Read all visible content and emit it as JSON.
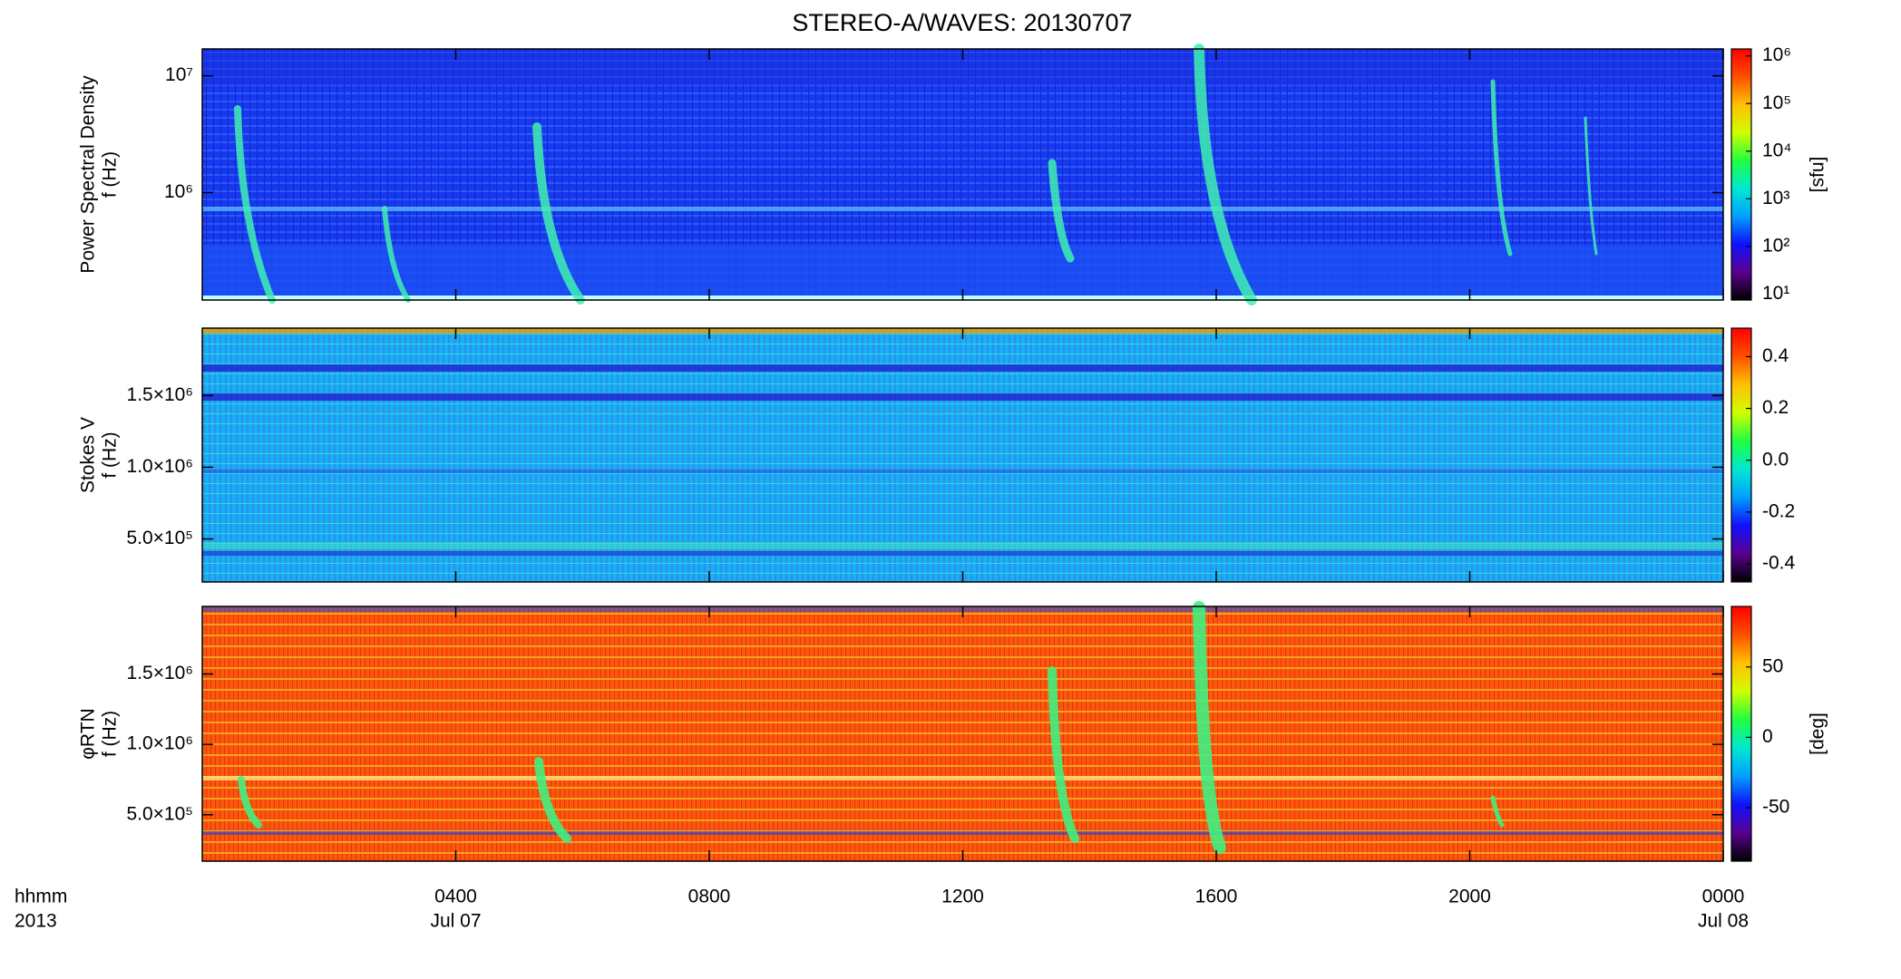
{
  "chart_data": {
    "type": "spectrogram",
    "title": "STEREO-A/WAVES: 20130707",
    "xlabel": "hhmm",
    "xlabel2": "2013",
    "xlim": [
      0,
      24
    ],
    "xticks": [
      {
        "value": 4,
        "label": "0400"
      },
      {
        "value": 8,
        "label": "0800"
      },
      {
        "value": 12,
        "label": "1200"
      },
      {
        "value": 16,
        "label": "1600"
      },
      {
        "value": 20,
        "label": "2000"
      },
      {
        "value": 24,
        "label": "0000"
      }
    ],
    "xdate_labels": [
      {
        "value": 4,
        "label": "Jul 07"
      },
      {
        "value": 24,
        "label": "Jul 08"
      }
    ],
    "colormap": [
      "#000000",
      "#5a0090",
      "#1010ff",
      "#00a0ff",
      "#00e8d0",
      "#20ff40",
      "#d0ff00",
      "#ffc000",
      "#ff5000",
      "#ff0000"
    ],
    "panels": [
      {
        "ylabel": [
          "Power Spectral Density",
          "f (Hz)"
        ],
        "ylog": true,
        "ylim": [
          120000,
          17000000
        ],
        "yticks": [
          {
            "value": 1000000,
            "label": "10⁶"
          },
          {
            "value": 10000000,
            "label": "10⁷"
          }
        ],
        "clog": true,
        "clim": [
          7.5,
          1400000
        ],
        "cticks": [
          {
            "value": 10,
            "label": "10¹"
          },
          {
            "value": 100,
            "label": "10²"
          },
          {
            "value": 1000,
            "label": "10³"
          },
          {
            "value": 10000,
            "label": "10⁴"
          },
          {
            "value": 100000,
            "label": "10⁵"
          },
          {
            "value": 1000000,
            "label": "10⁶"
          }
        ],
        "clabel": "[sfu]"
      },
      {
        "ylabel": [
          "Stokes V",
          "f (Hz)"
        ],
        "ylog": false,
        "ylim": [
          200000,
          1970000
        ],
        "yticks": [
          {
            "value": 500000,
            "label": "5.0×10⁵"
          },
          {
            "value": 1000000,
            "label": "1.0×10⁶"
          },
          {
            "value": 1500000,
            "label": "1.5×10⁶"
          }
        ],
        "clog": false,
        "clim": [
          -0.47,
          0.51
        ],
        "cticks": [
          -0.4,
          -0.2,
          {
            "value": 0,
            "label": "0.0"
          },
          0.2,
          0.4
        ]
      },
      {
        "ylabel": [
          "φRTN",
          "f (Hz)"
        ],
        "ylog": false,
        "ylim": [
          170000,
          1980000
        ],
        "yticks": [
          {
            "value": 500000,
            "label": "5.0×10⁵"
          },
          {
            "value": 1000000,
            "label": "1.0×10⁶"
          },
          {
            "value": 1500000,
            "label": "1.5×10⁶"
          }
        ],
        "clog": false,
        "clim": [
          -88,
          93
        ],
        "cticks": [
          -50,
          0,
          50
        ],
        "clabel": "[deg]"
      }
    ]
  }
}
